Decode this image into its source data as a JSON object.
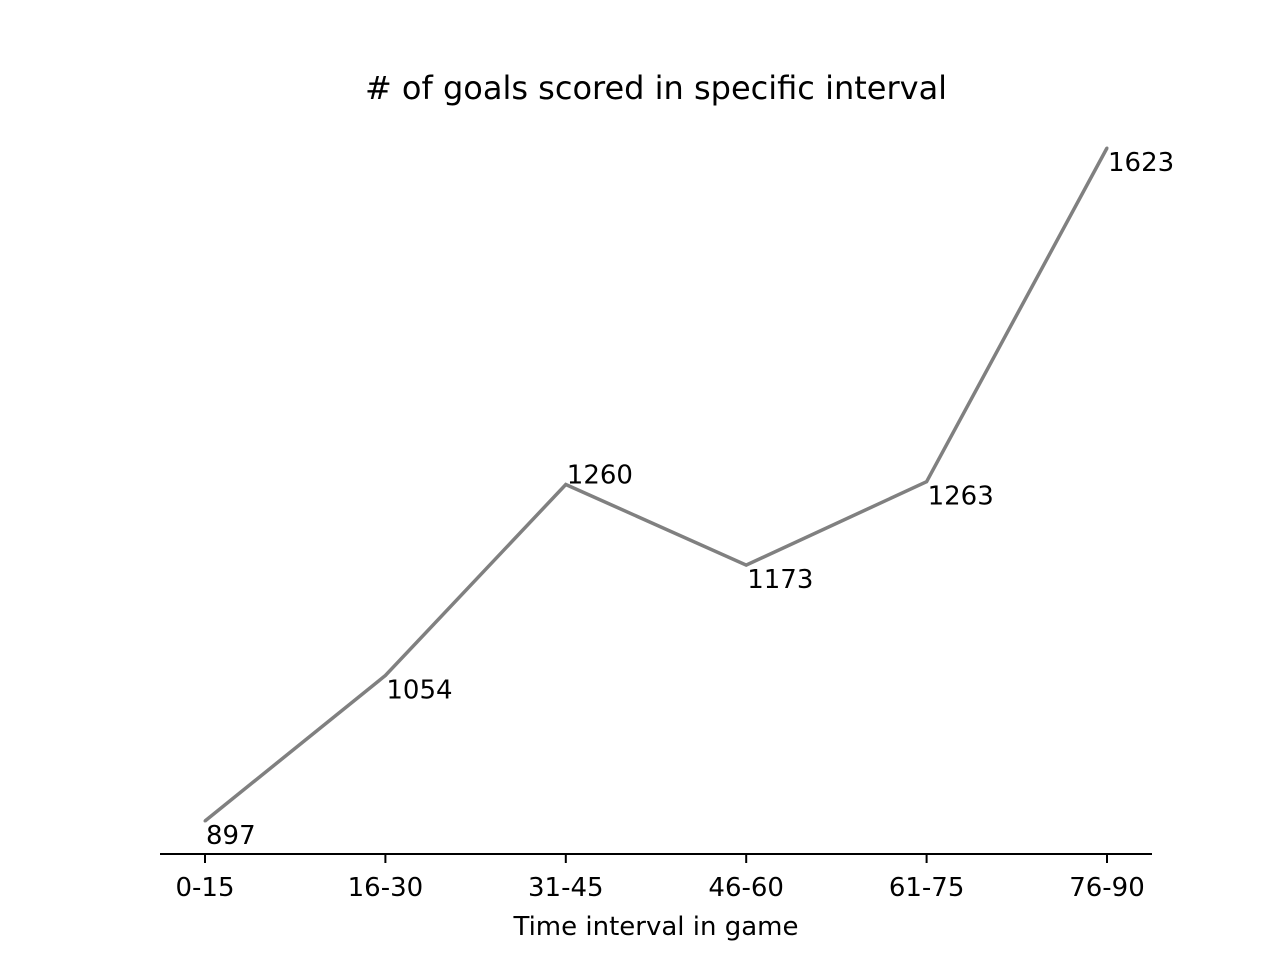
{
  "chart_data": {
    "type": "line",
    "title": "# of goals scored in specific interval",
    "xlabel": "Time interval in game",
    "ylabel": "",
    "categories": [
      "0-15",
      "16-30",
      "31-45",
      "46-60",
      "61-75",
      "76-90"
    ],
    "series": [
      {
        "values": [
          897,
          1054,
          1260,
          1173,
          1263,
          1623
        ],
        "color": "#808080"
      }
    ],
    "ylim": [
      862,
      1660
    ],
    "grid": false,
    "legend": "none",
    "spines": {
      "left": false,
      "right": false,
      "top": false,
      "bottom": true
    },
    "y_ticks_visible": false,
    "data_labels": true
  }
}
